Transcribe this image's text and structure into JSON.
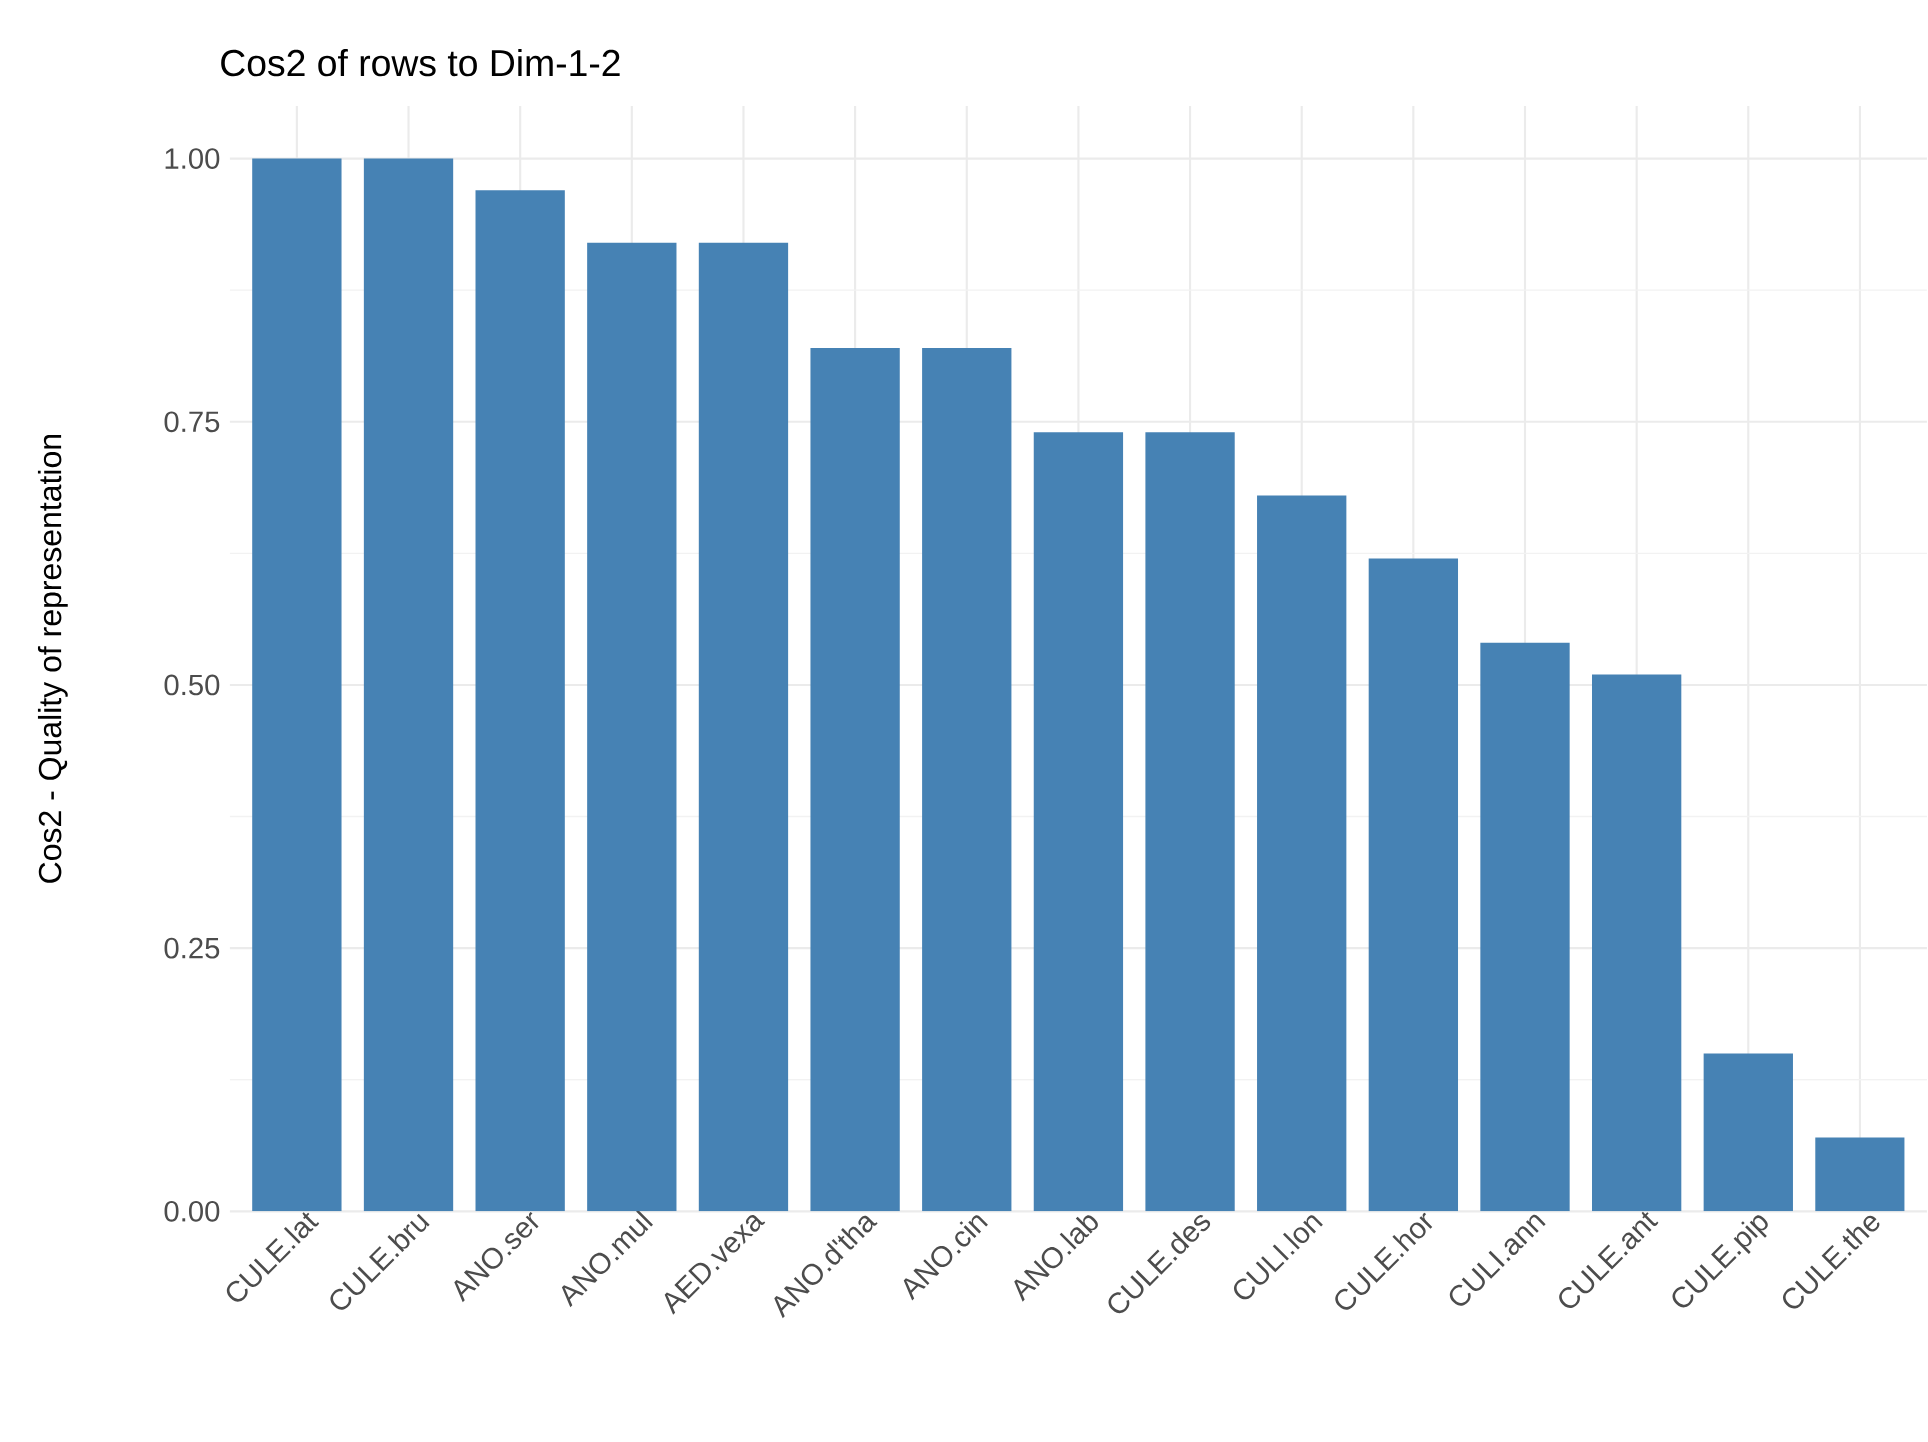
{
  "chart_data": {
    "type": "bar",
    "title": "Cos2 of rows to Dim-1-2",
    "ylabel": "Cos2 - Quality of representation",
    "categories": [
      "CULE.lat",
      "CULE.bru",
      "ANO.ser",
      "ANO.mul",
      "AED.vexa",
      "ANO.d'tha",
      "ANO.cin",
      "ANO.lab",
      "CULE.des",
      "CULI.lon",
      "CULE.hor",
      "CULI.ann",
      "CULE.ant",
      "CULE.pip",
      "CULE.the"
    ],
    "values": [
      1.0,
      1.0,
      0.97,
      0.92,
      0.92,
      0.82,
      0.82,
      0.74,
      0.74,
      0.68,
      0.62,
      0.54,
      0.51,
      0.15,
      0.07
    ],
    "color": "#4682b4",
    "ylim": [
      0,
      1.05
    ],
    "yticks": [
      {
        "value": 0,
        "label": "0.00"
      },
      {
        "value": 0.25,
        "label": "0.25"
      },
      {
        "value": 0.5,
        "label": "0.50"
      },
      {
        "value": 0.75,
        "label": "0.75"
      },
      {
        "value": 1,
        "label": "1.00"
      }
    ],
    "grid": true
  }
}
